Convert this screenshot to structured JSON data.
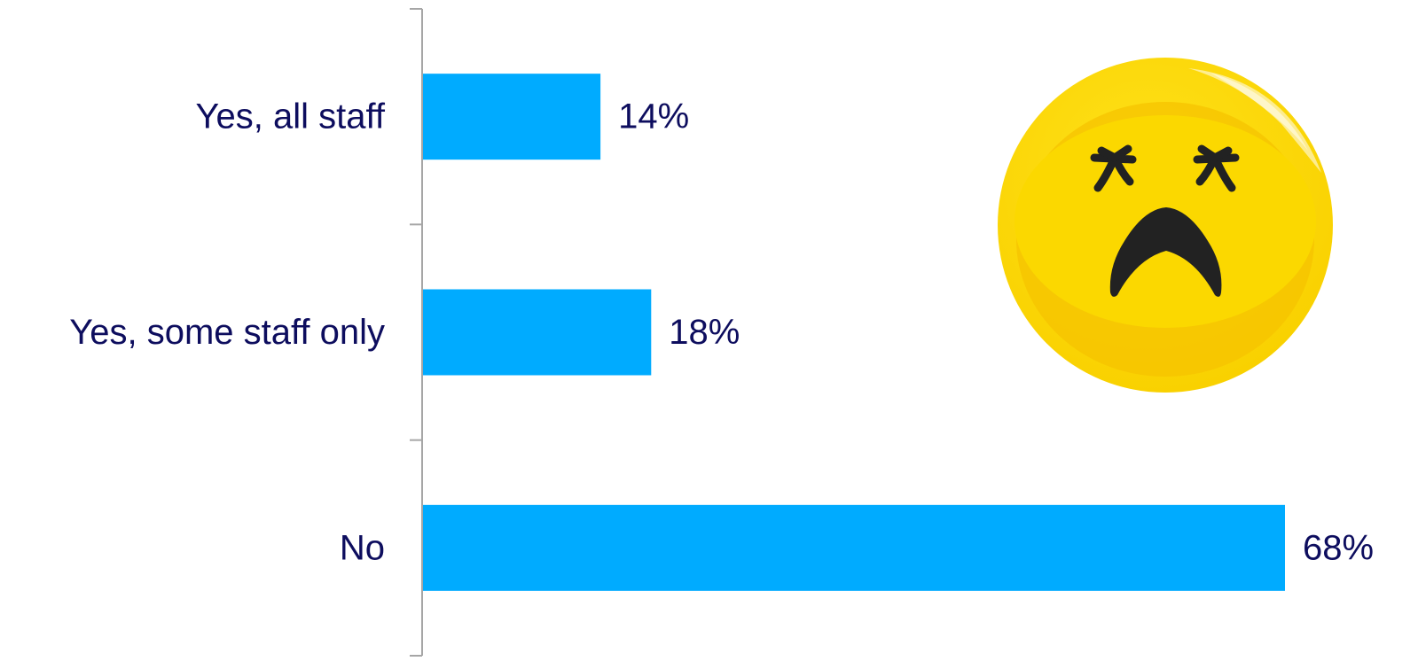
{
  "chart_data": {
    "type": "bar",
    "orientation": "horizontal",
    "categories": [
      "Yes, all staff",
      "Yes, some staff only",
      "No"
    ],
    "values": [
      14,
      18,
      68
    ],
    "value_labels": [
      "14%",
      "18%",
      "68%"
    ],
    "unit": "%",
    "title": "",
    "xlabel": "",
    "ylabel": "",
    "xlim": [
      0,
      68
    ],
    "grid": false,
    "legend": "none"
  },
  "colors": {
    "bar": "#00abff",
    "label_text": "#0d0d5e",
    "axis": "#a6a6a6",
    "face": "#f9d500",
    "face_shade": "#f5c300",
    "face_features": "#222222"
  },
  "illustration": {
    "icon": "sad-face-icon"
  }
}
